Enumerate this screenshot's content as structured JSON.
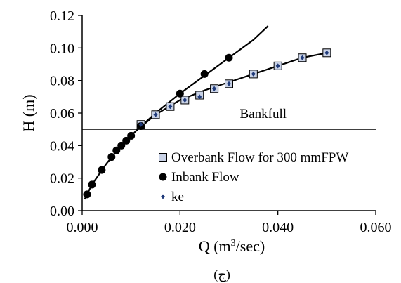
{
  "chart_data": {
    "type": "scatter",
    "xlabel": "Q (m³/sec)",
    "ylabel": "H (m)",
    "xlim": [
      0,
      0.06
    ],
    "ylim": [
      0,
      0.12
    ],
    "xticks": [
      "0.000",
      "0.020",
      "0.040",
      "0.060"
    ],
    "yticks": [
      "0.00",
      "0.02",
      "0.04",
      "0.06",
      "0.08",
      "0.10",
      "0.12"
    ],
    "xtick_values": [
      0,
      0.02,
      0.04,
      0.06
    ],
    "ytick_values": [
      0,
      0.02,
      0.04,
      0.06,
      0.08,
      0.1,
      0.12
    ],
    "grid": false,
    "legend_position": "lower-right",
    "annotation": {
      "text": "Bankfull",
      "value": 0.05
    },
    "caption": "(ج)",
    "series": [
      {
        "name": "Overbank Flow for 300 mmFPW",
        "marker": "open-square",
        "x": [
          0.012,
          0.015,
          0.018,
          0.021,
          0.024,
          0.027,
          0.03,
          0.035,
          0.04,
          0.045,
          0.05
        ],
        "y": [
          0.053,
          0.059,
          0.064,
          0.068,
          0.071,
          0.075,
          0.078,
          0.084,
          0.089,
          0.094,
          0.097
        ]
      },
      {
        "name": "Inbank Flow",
        "marker": "filled-circle",
        "x": [
          0.001,
          0.002,
          0.004,
          0.006,
          0.007,
          0.008,
          0.009,
          0.01,
          0.012,
          0.02,
          0.025,
          0.03
        ],
        "y": [
          0.01,
          0.016,
          0.025,
          0.033,
          0.037,
          0.04,
          0.043,
          0.046,
          0.052,
          0.072,
          0.084,
          0.094
        ]
      },
      {
        "name": "ke",
        "marker": "small-diamond",
        "x": [
          0.012,
          0.015,
          0.018,
          0.021,
          0.024,
          0.027,
          0.03,
          0.035,
          0.04,
          0.045,
          0.05
        ],
        "y": [
          0.053,
          0.059,
          0.064,
          0.068,
          0.07,
          0.075,
          0.078,
          0.084,
          0.089,
          0.094,
          0.097
        ]
      }
    ],
    "fit_curves": [
      {
        "x": [
          0.0005,
          0.002,
          0.005,
          0.008,
          0.011,
          0.015,
          0.02,
          0.025,
          0.03,
          0.035,
          0.038
        ],
        "y": [
          0.007,
          0.016,
          0.029,
          0.04,
          0.049,
          0.06,
          0.072,
          0.083,
          0.094,
          0.105,
          0.1135
        ]
      },
      {
        "x": [
          0.011,
          0.015,
          0.02,
          0.025,
          0.03,
          0.035,
          0.04,
          0.045,
          0.05
        ],
        "y": [
          0.049,
          0.059,
          0.068,
          0.074,
          0.079,
          0.084,
          0.089,
          0.094,
          0.097
        ]
      }
    ],
    "colors": {
      "inbank": "#000000",
      "overbank_fill": "#c9d2e6",
      "ke": "#1f3a7a",
      "line": "#000000"
    }
  }
}
